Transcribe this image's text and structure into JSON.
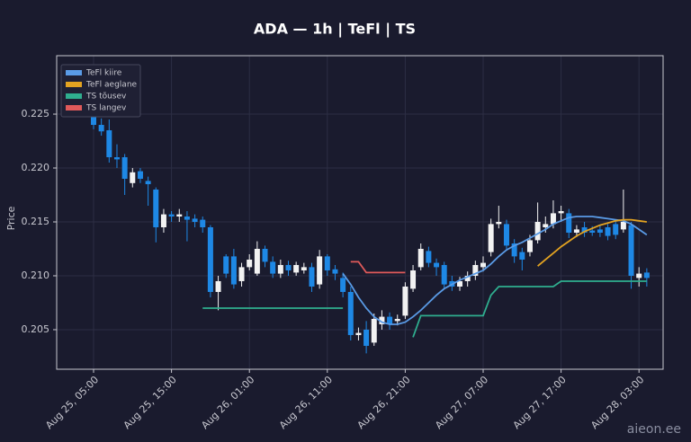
{
  "chart_data": {
    "type": "candlestick",
    "title": "ADA — 1h  |  TeFl  |  TS",
    "y_label": "Price",
    "x": [
      "Aug 25, 05:00",
      "Aug 25, 06:00",
      "Aug 25, 07:00",
      "Aug 25, 08:00",
      "Aug 25, 09:00",
      "Aug 25, 10:00",
      "Aug 25, 11:00",
      "Aug 25, 12:00",
      "Aug 25, 13:00",
      "Aug 25, 14:00",
      "Aug 25, 15:00",
      "Aug 25, 16:00",
      "Aug 25, 17:00",
      "Aug 25, 18:00",
      "Aug 25, 19:00",
      "Aug 25, 20:00",
      "Aug 25, 21:00",
      "Aug 25, 22:00",
      "Aug 25, 23:00",
      "Aug 26, 00:00",
      "Aug 26, 01:00",
      "Aug 26, 02:00",
      "Aug 26, 03:00",
      "Aug 26, 04:00",
      "Aug 26, 05:00",
      "Aug 26, 06:00",
      "Aug 26, 07:00",
      "Aug 26, 08:00",
      "Aug 26, 09:00",
      "Aug 26, 10:00",
      "Aug 26, 11:00",
      "Aug 26, 12:00",
      "Aug 26, 13:00",
      "Aug 26, 14:00",
      "Aug 26, 15:00",
      "Aug 26, 16:00",
      "Aug 26, 17:00",
      "Aug 26, 18:00",
      "Aug 26, 19:00",
      "Aug 26, 20:00",
      "Aug 26, 21:00",
      "Aug 26, 22:00",
      "Aug 26, 23:00",
      "Aug 27, 00:00",
      "Aug 27, 01:00",
      "Aug 27, 02:00",
      "Aug 27, 03:00",
      "Aug 27, 04:00",
      "Aug 27, 05:00",
      "Aug 27, 06:00",
      "Aug 27, 07:00",
      "Aug 27, 08:00",
      "Aug 27, 09:00",
      "Aug 27, 10:00",
      "Aug 27, 11:00",
      "Aug 27, 12:00",
      "Aug 27, 13:00",
      "Aug 27, 14:00",
      "Aug 27, 15:00",
      "Aug 27, 16:00",
      "Aug 27, 17:00",
      "Aug 27, 18:00",
      "Aug 27, 19:00",
      "Aug 27, 20:00",
      "Aug 27, 21:00",
      "Aug 27, 22:00",
      "Aug 27, 23:00",
      "Aug 28, 00:00",
      "Aug 28, 01:00",
      "Aug 28, 02:00",
      "Aug 28, 03:00",
      "Aug 28, 04:00"
    ],
    "open": [
      0.2248,
      0.224,
      0.2235,
      0.221,
      0.221,
      0.2186,
      0.2197,
      0.2188,
      0.218,
      0.2145,
      0.2157,
      0.2155,
      0.2155,
      0.2153,
      0.2152,
      0.2145,
      0.2085,
      0.2118,
      0.2118,
      0.2095,
      0.2108,
      0.2102,
      0.2125,
      0.2113,
      0.2102,
      0.211,
      0.2103,
      0.2105,
      0.2108,
      0.2092,
      0.2118,
      0.2106,
      0.2098,
      0.2085,
      0.2045,
      0.205,
      0.2038,
      0.2055,
      0.2062,
      0.2058,
      0.2063,
      0.2088,
      0.2108,
      0.2123,
      0.2112,
      0.211,
      0.2095,
      0.209,
      0.2095,
      0.21,
      0.2108,
      0.2122,
      0.2148,
      0.2148,
      0.213,
      0.2122,
      0.2122,
      0.2133,
      0.2145,
      0.2148,
      0.2158,
      0.2158,
      0.214,
      0.2145,
      0.2142,
      0.2143,
      0.2145,
      0.2148,
      0.2143,
      0.2147,
      0.2098,
      0.2103
    ],
    "high": [
      0.2252,
      0.2246,
      0.2245,
      0.2222,
      0.2213,
      0.22,
      0.22,
      0.2192,
      0.2182,
      0.2162,
      0.216,
      0.2162,
      0.216,
      0.2157,
      0.2155,
      0.2147,
      0.21,
      0.212,
      0.2125,
      0.2112,
      0.212,
      0.2132,
      0.2128,
      0.2118,
      0.2115,
      0.2114,
      0.2113,
      0.2112,
      0.2112,
      0.2124,
      0.212,
      0.211,
      0.2103,
      0.209,
      0.2052,
      0.2058,
      0.2065,
      0.2068,
      0.2066,
      0.2064,
      0.2094,
      0.211,
      0.213,
      0.2127,
      0.2116,
      0.2113,
      0.21,
      0.2099,
      0.2104,
      0.2114,
      0.2118,
      0.2153,
      0.2165,
      0.2152,
      0.2134,
      0.2126,
      0.2138,
      0.2168,
      0.2155,
      0.217,
      0.2165,
      0.2162,
      0.2147,
      0.215,
      0.2146,
      0.2147,
      0.2148,
      0.2152,
      0.218,
      0.215,
      0.2108,
      0.2107
    ],
    "low": [
      0.2236,
      0.223,
      0.2205,
      0.22,
      0.2175,
      0.2182,
      0.2186,
      0.2165,
      0.2131,
      0.214,
      0.215,
      0.215,
      0.2132,
      0.2145,
      0.214,
      0.208,
      0.2068,
      0.2098,
      0.2088,
      0.209,
      0.2105,
      0.21,
      0.2108,
      0.2098,
      0.2098,
      0.21,
      0.21,
      0.2102,
      0.2085,
      0.2088,
      0.21,
      0.2096,
      0.208,
      0.204,
      0.204,
      0.2028,
      0.2035,
      0.205,
      0.205,
      0.2054,
      0.206,
      0.2085,
      0.2105,
      0.2108,
      0.21,
      0.2088,
      0.2086,
      0.2086,
      0.209,
      0.2096,
      0.2104,
      0.2118,
      0.2144,
      0.2124,
      0.2112,
      0.2105,
      0.2118,
      0.213,
      0.214,
      0.2144,
      0.215,
      0.2135,
      0.2136,
      0.2136,
      0.2137,
      0.2136,
      0.2133,
      0.2134,
      0.214,
      0.2088,
      0.209,
      0.209
    ],
    "close": [
      0.224,
      0.2234,
      0.221,
      0.2208,
      0.219,
      0.2196,
      0.219,
      0.2185,
      0.2145,
      0.2157,
      0.2155,
      0.2157,
      0.2152,
      0.215,
      0.2145,
      0.2085,
      0.2095,
      0.2102,
      0.2092,
      0.2108,
      0.2115,
      0.2125,
      0.2113,
      0.2102,
      0.211,
      0.2105,
      0.211,
      0.2108,
      0.209,
      0.2118,
      0.2105,
      0.2102,
      0.2085,
      0.2045,
      0.2047,
      0.2035,
      0.206,
      0.2062,
      0.2055,
      0.206,
      0.209,
      0.2105,
      0.2125,
      0.2112,
      0.2108,
      0.2092,
      0.209,
      0.2095,
      0.21,
      0.211,
      0.2112,
      0.2148,
      0.215,
      0.2128,
      0.2118,
      0.2115,
      0.2133,
      0.215,
      0.2148,
      0.2158,
      0.216,
      0.214,
      0.2143,
      0.214,
      0.214,
      0.214,
      0.2137,
      0.2138,
      0.215,
      0.21,
      0.2102,
      0.2098
    ],
    "up_color": "#f2f2f2",
    "down_color": "#1e88e5",
    "series": [
      {
        "name": "TeFl kiire",
        "color": "#5a9be6",
        "values": [
          null,
          null,
          null,
          null,
          null,
          null,
          null,
          null,
          null,
          null,
          null,
          null,
          null,
          null,
          null,
          null,
          null,
          null,
          null,
          null,
          null,
          null,
          null,
          null,
          null,
          null,
          null,
          null,
          null,
          null,
          null,
          null,
          0.2102,
          0.2092,
          0.208,
          0.207,
          0.2062,
          0.2057,
          0.2055,
          0.2055,
          0.2057,
          0.2062,
          0.2068,
          0.2075,
          0.2082,
          0.2088,
          0.2092,
          0.2096,
          0.2099,
          0.2102,
          0.2105,
          0.2111,
          0.2118,
          0.2124,
          0.2128,
          0.2131,
          0.2135,
          0.2139,
          0.2143,
          0.2148,
          0.2151,
          0.2154,
          0.2155,
          0.2155,
          0.2155,
          0.2154,
          0.2153,
          0.2152,
          0.2151,
          0.2148,
          0.2143,
          0.2138
        ]
      },
      {
        "name": "TeFl aeglane",
        "color": "#e3a321",
        "values": [
          null,
          null,
          null,
          null,
          null,
          null,
          null,
          null,
          null,
          null,
          null,
          null,
          null,
          null,
          null,
          null,
          null,
          null,
          null,
          null,
          null,
          null,
          null,
          null,
          null,
          null,
          null,
          null,
          null,
          null,
          null,
          null,
          null,
          null,
          null,
          null,
          null,
          null,
          null,
          null,
          null,
          null,
          null,
          null,
          null,
          null,
          null,
          null,
          null,
          null,
          null,
          null,
          null,
          null,
          null,
          null,
          null,
          0.2109,
          0.2115,
          0.2121,
          0.2127,
          0.2132,
          0.2137,
          0.2141,
          0.2144,
          0.2147,
          0.2149,
          0.2151,
          0.2152,
          0.2152,
          0.2151,
          0.215
        ]
      },
      {
        "name": "TS tõusev",
        "color": "#2fae8f",
        "values": [
          null,
          null,
          null,
          null,
          null,
          null,
          null,
          null,
          null,
          null,
          null,
          null,
          null,
          null,
          0.207,
          0.207,
          0.207,
          0.207,
          0.207,
          0.207,
          0.207,
          0.207,
          0.207,
          0.207,
          0.207,
          0.207,
          0.207,
          0.207,
          0.207,
          0.207,
          0.207,
          0.207,
          0.207,
          null,
          null,
          null,
          null,
          null,
          null,
          null,
          null,
          0.2043,
          0.2063,
          0.2063,
          0.2063,
          0.2063,
          0.2063,
          0.2063,
          0.2063,
          0.2063,
          0.2063,
          0.2082,
          0.209,
          0.209,
          0.209,
          0.209,
          0.209,
          0.209,
          0.209,
          0.209,
          0.2095,
          0.2095,
          0.2095,
          0.2095,
          0.2095,
          0.2095,
          0.2095,
          0.2095,
          0.2095,
          0.2095,
          0.2095,
          0.2095
        ]
      },
      {
        "name": "TS langev",
        "color": "#e05a5a",
        "values": [
          null,
          null,
          null,
          null,
          null,
          null,
          null,
          null,
          null,
          null,
          null,
          null,
          null,
          null,
          null,
          null,
          null,
          null,
          null,
          null,
          null,
          null,
          null,
          null,
          null,
          null,
          null,
          null,
          null,
          null,
          null,
          null,
          null,
          0.2113,
          0.2113,
          0.2103,
          0.2103,
          0.2103,
          0.2103,
          0.2103,
          0.2103,
          null,
          null,
          null,
          null,
          null,
          null,
          null,
          null,
          null,
          null,
          null,
          null,
          null,
          null,
          null,
          null,
          null,
          null,
          null,
          null,
          null,
          null,
          null,
          null,
          null,
          null,
          null,
          null,
          null,
          null,
          null
        ]
      }
    ],
    "ylim": [
      0.20133,
      0.23042
    ],
    "yticks": [
      0.205,
      {
        "value": 0.21,
        "label": "0.210"
      },
      0.215,
      {
        "value": 0.22,
        "label": "0.220"
      },
      0.225
    ],
    "xticks": [
      "Aug 25, 05:00",
      "Aug 25, 15:00",
      "Aug 26, 01:00",
      "Aug 26, 11:00",
      "Aug 26, 21:00",
      "Aug 27, 07:00",
      "Aug 27, 17:00",
      "Aug 28, 03:00"
    ],
    "grid": true,
    "legend": "upper left"
  },
  "watermark": "aieon.ee"
}
